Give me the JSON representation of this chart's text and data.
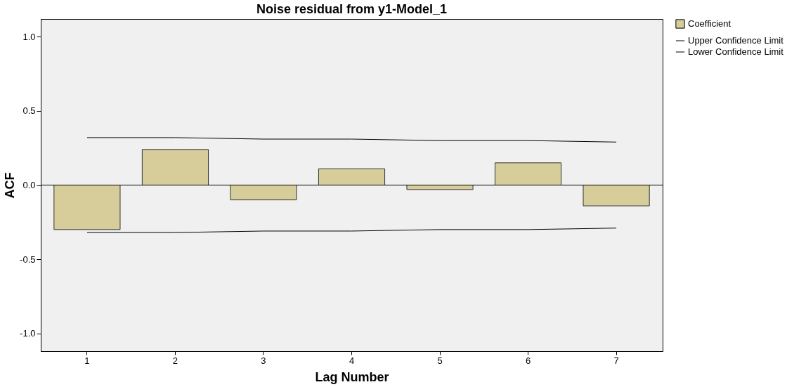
{
  "chart_data": {
    "type": "bar",
    "title": "Noise residual from y1-Model_1",
    "xlabel": "Lag Number",
    "ylabel": "ACF",
    "categories": [
      "1",
      "2",
      "3",
      "4",
      "5",
      "6",
      "7"
    ],
    "series": [
      {
        "name": "Coefficient",
        "color": "#d6cd9a",
        "values": [
          -0.3,
          0.24,
          -0.1,
          0.11,
          -0.03,
          0.15,
          -0.14
        ]
      },
      {
        "name": "Upper Confidence Limit",
        "type": "line",
        "color": "#000000",
        "values": [
          0.32,
          0.32,
          0.31,
          0.31,
          0.3,
          0.3,
          0.29
        ]
      },
      {
        "name": "Lower Confidence Limit",
        "type": "line",
        "color": "#000000",
        "values": [
          -0.32,
          -0.32,
          -0.31,
          -0.31,
          -0.3,
          -0.3,
          -0.29
        ]
      }
    ],
    "ylim": [
      -1.12,
      1.12
    ],
    "yticks": [
      {
        "value": -1.0,
        "label": "-1.0"
      },
      {
        "value": -0.5,
        "label": "-0.5"
      },
      {
        "value": 0.0,
        "label": "0.0"
      },
      {
        "value": 0.5,
        "label": "0.5"
      },
      {
        "value": 1.0,
        "label": "1.0"
      }
    ],
    "ref_lines": [
      {
        "axis": "y",
        "value": 0,
        "color": "#000000"
      }
    ],
    "grid": false,
    "legend": "top right"
  }
}
